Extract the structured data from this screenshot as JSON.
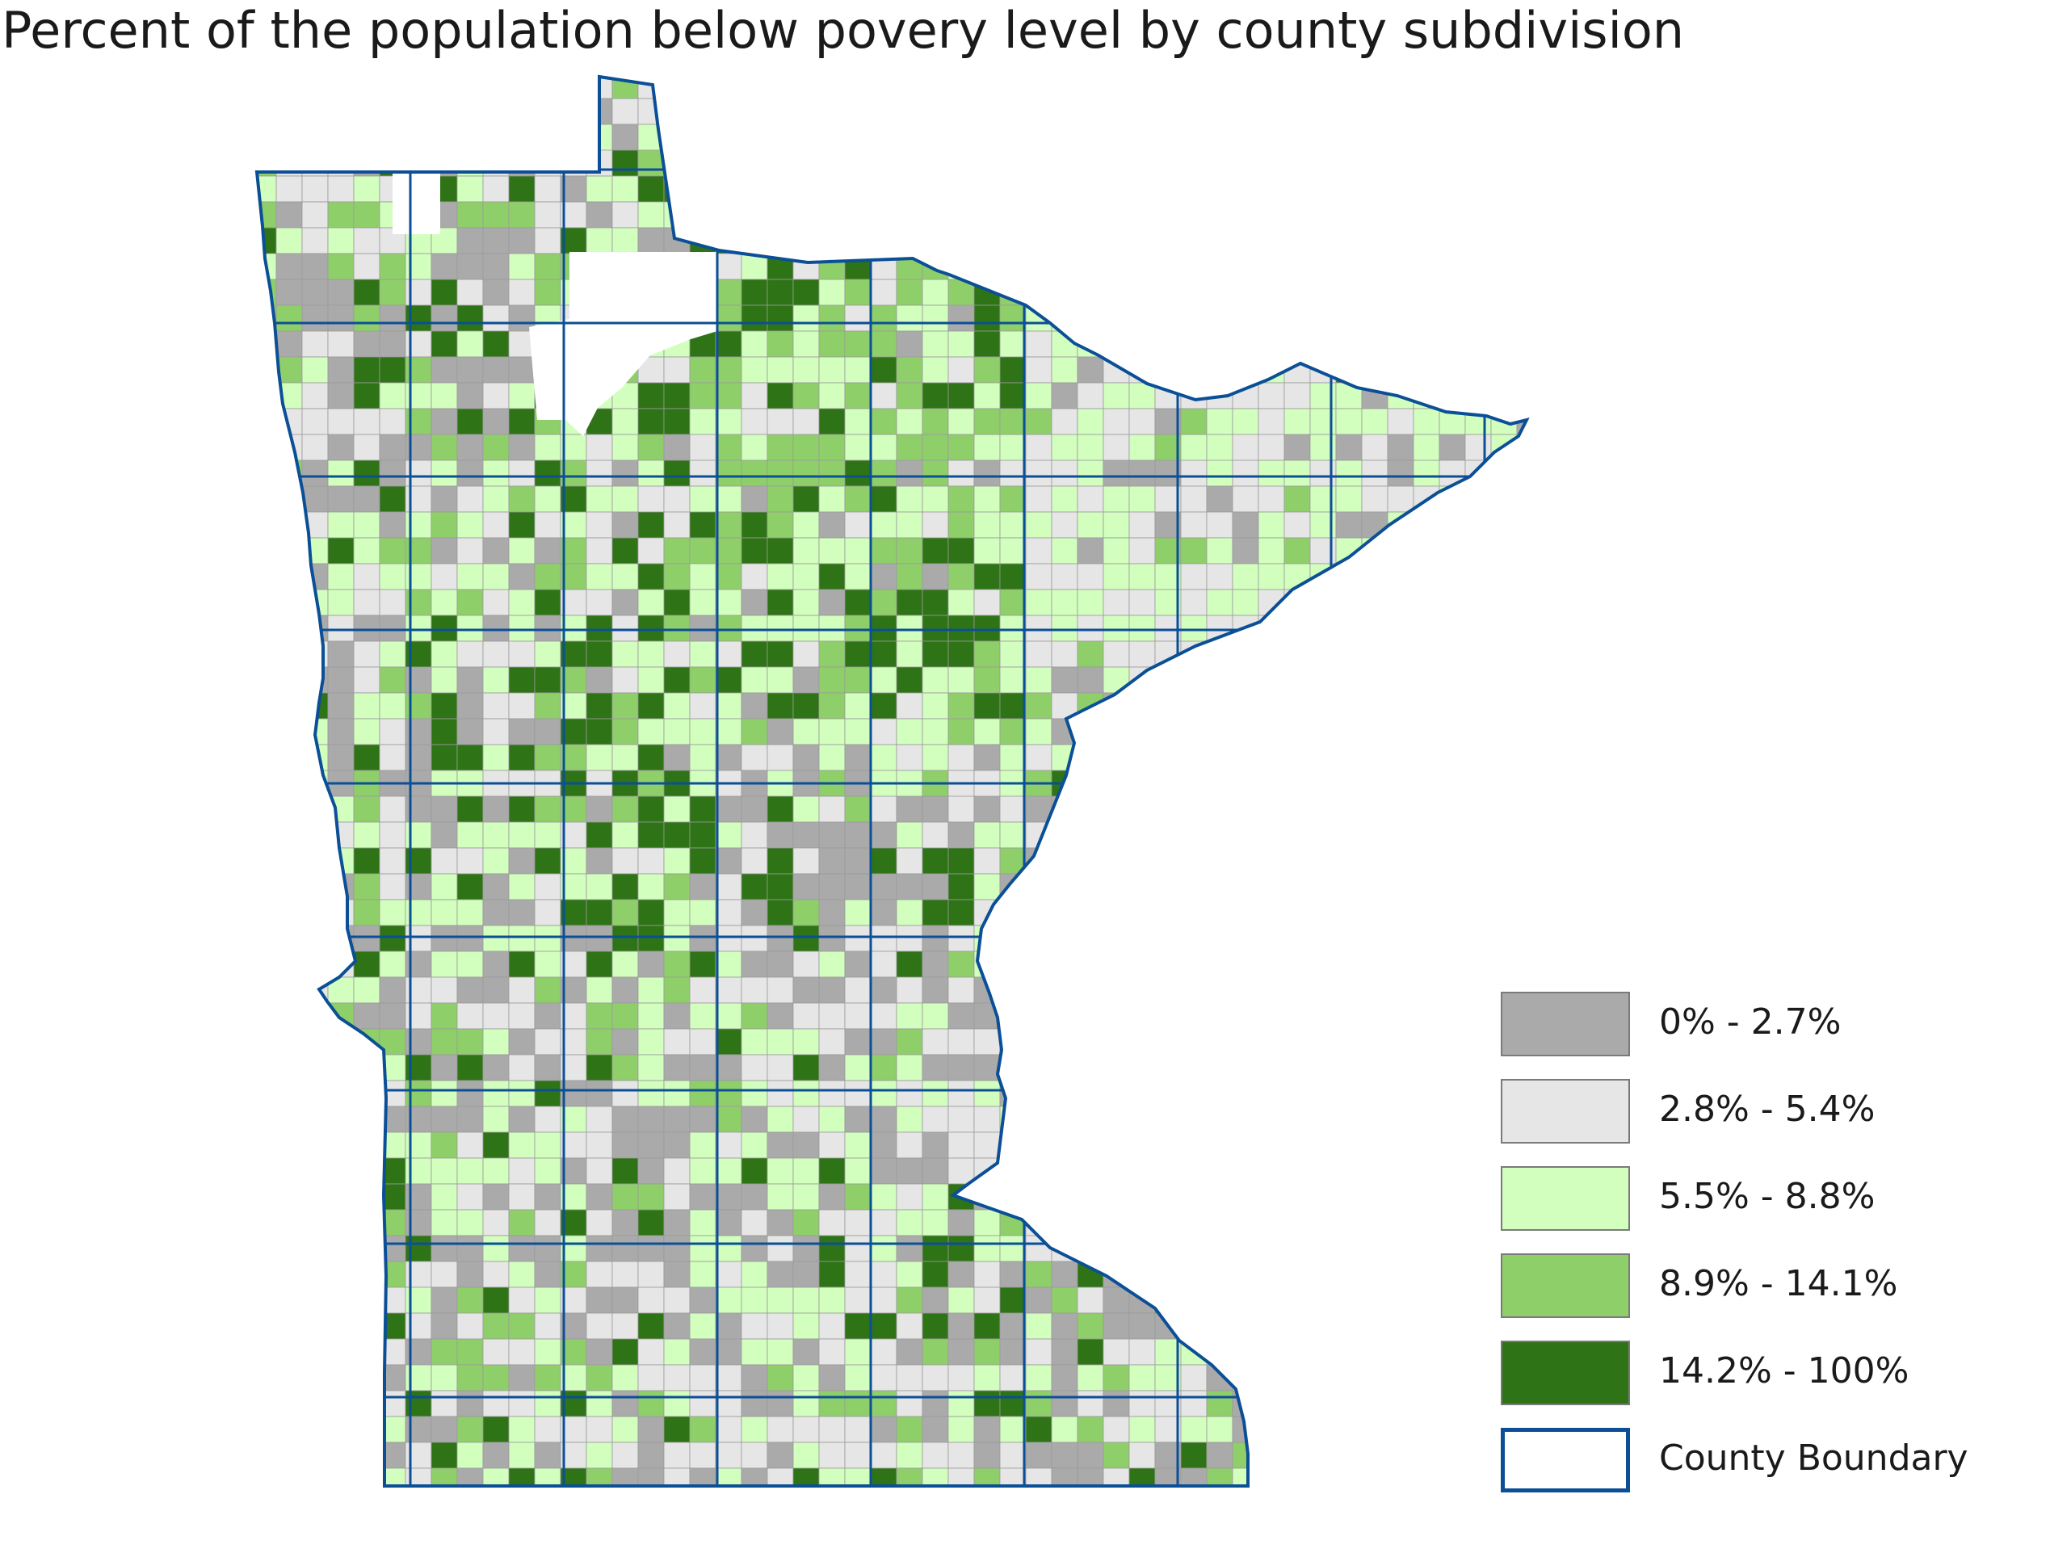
{
  "title": "Percent of the population below povery level by county subdivision",
  "legend": {
    "items": [
      {
        "label": "0% - 2.7%",
        "color": "#aaaaaa"
      },
      {
        "label": "2.8% - 5.4%",
        "color": "#e6e6e6"
      },
      {
        "label": "5.5% - 8.8%",
        "color": "#d3ffbe"
      },
      {
        "label": "8.9% - 14.1%",
        "color": "#8fcf6a"
      },
      {
        "label": "14.2% - 100%",
        "color": "#2e7315"
      },
      {
        "label": "County Boundary",
        "color": "#0b4f96"
      }
    ]
  },
  "colors": {
    "county_boundary": "#0b4f96",
    "no_data": "#ffffff"
  }
}
